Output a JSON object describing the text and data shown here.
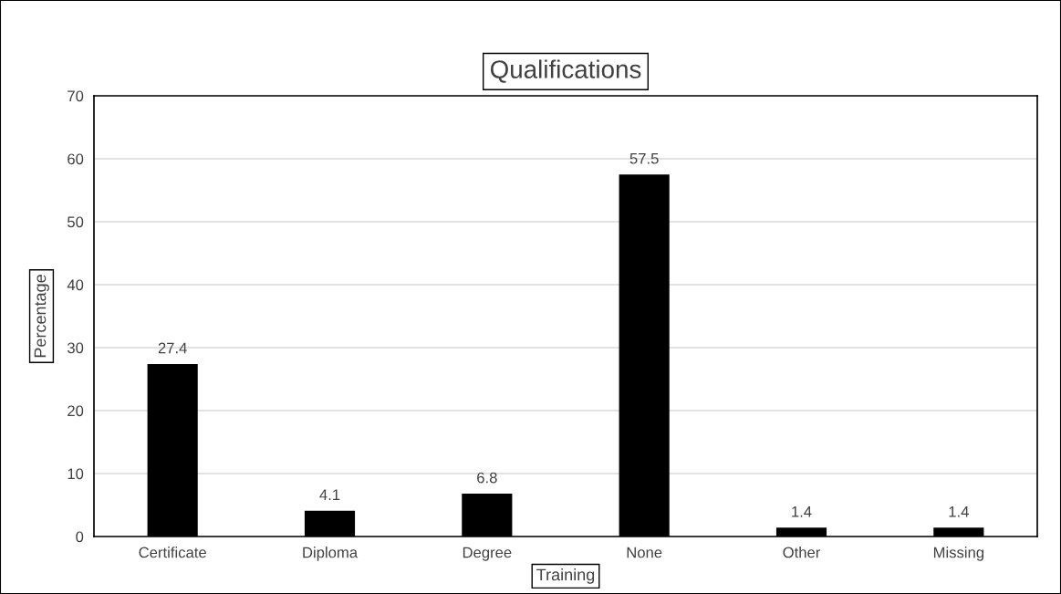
{
  "chart_data": {
    "type": "bar",
    "title": "Qualifications",
    "xlabel": "Training",
    "ylabel": "Percentage",
    "categories": [
      "Certificate",
      "Diploma",
      "Degree",
      "None",
      "Other",
      "Missing"
    ],
    "values": [
      27.4,
      4.1,
      6.8,
      57.5,
      1.4,
      1.4
    ],
    "color": "#000000",
    "ylim": [
      0,
      70
    ],
    "yticks": [
      0,
      10,
      20,
      30,
      40,
      50,
      60,
      70
    ],
    "grid": "y",
    "legend": false,
    "data_labels": true
  }
}
